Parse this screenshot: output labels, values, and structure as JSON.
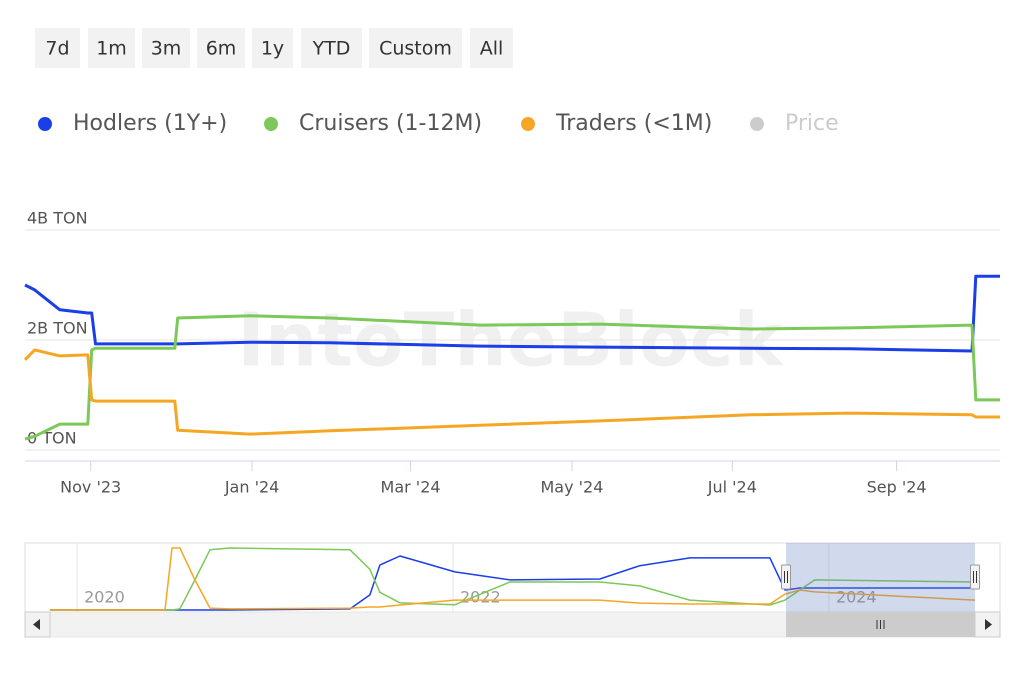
{
  "range_selector": {
    "buttons": [
      "7d",
      "1m",
      "3m",
      "6m",
      "1y",
      "YTD",
      "Custom",
      "All"
    ]
  },
  "watermark": "IntoTheBlock",
  "chart_data": [
    {
      "type": "line",
      "x": [
        2023.765,
        2023.775,
        2023.801,
        2023.83,
        2023.834,
        2023.838,
        2023.92,
        2023.923,
        2023.998,
        2024.081,
        2024.236,
        2024.36,
        2024.516,
        2024.619,
        2024.745,
        2024.749,
        2024.774
      ],
      "xlim": [
        2023.765,
        2024.774
      ],
      "xticks": [
        {
          "value": 2023.833,
          "label": "Nov '23"
        },
        {
          "value": 2024.0,
          "label": "Jan '24"
        },
        {
          "value": 2024.164,
          "label": "Mar '24"
        },
        {
          "value": 2024.331,
          "label": "May '24"
        },
        {
          "value": 2024.497,
          "label": "Jul '24"
        },
        {
          "value": 2024.667,
          "label": "Sep '24"
        }
      ],
      "ylim": [
        0,
        4000000000
      ],
      "yticks": [
        {
          "value": 0,
          "label": "0 TON"
        },
        {
          "value": 2000000000,
          "label": "2B TON"
        },
        {
          "value": 4000000000,
          "label": "4B TON"
        }
      ],
      "grid": true,
      "series": [
        {
          "name": "Hodlers (1Y+)",
          "color": "#1a3ee8",
          "values": [
            3000000000,
            2910000000,
            2550000000,
            2490000000,
            2490000000,
            1930000000,
            1930000000,
            1930000000,
            1960000000,
            1950000000,
            1890000000,
            1870000000,
            1850000000,
            1840000000,
            1800000000,
            3160000000,
            3160000000
          ]
        },
        {
          "name": "Cruisers (1-12M)",
          "color": "#7cc95a",
          "values": [
            200000000,
            250000000,
            470000000,
            470000000,
            1820000000,
            1850000000,
            1850000000,
            2400000000,
            2440000000,
            2400000000,
            2270000000,
            2290000000,
            2200000000,
            2220000000,
            2270000000,
            910000000,
            910000000
          ]
        },
        {
          "name": "Traders (<1M)",
          "color": "#f5a623",
          "values": [
            1640000000,
            1820000000,
            1710000000,
            1730000000,
            910000000,
            890000000,
            890000000,
            360000000,
            290000000,
            350000000,
            450000000,
            530000000,
            640000000,
            670000000,
            640000000,
            600000000,
            600000000
          ]
        },
        {
          "name": "Price",
          "color": "#cccccc",
          "visible": false
        }
      ]
    },
    {
      "type": "line",
      "x": [
        2019.856,
        2020.468,
        2020.505,
        2020.547,
        2020.627,
        2020.707,
        2020.813,
        2021.452,
        2021.558,
        2021.611,
        2021.718,
        2022.01,
        2022.303,
        2022.781,
        2022.994,
        2023.26,
        2023.686,
        2023.766,
        2023.845,
        2023.925,
        2024.777
      ],
      "xlim": [
        2019.856,
        2024.777
      ],
      "xticks": [
        2020,
        2022,
        2024
      ],
      "ylim": [
        0,
        3500000000
      ],
      "series": [
        {
          "name": "Hodlers (1Y+)",
          "color": "#1a3ee8",
          "values": [
            0,
            0,
            0,
            0,
            0,
            0,
            0,
            60000000,
            850000000,
            2540000000,
            3050000000,
            2150000000,
            1700000000,
            1750000000,
            2500000000,
            2940000000,
            2940000000,
            1130000000,
            1240000000,
            1240000000,
            1240000000
          ]
        },
        {
          "name": "Cruisers (1-12M)",
          "color": "#7cc95a",
          "values": [
            0,
            0,
            0,
            60000000,
            1700000000,
            3400000000,
            3500000000,
            3400000000,
            2300000000,
            1000000000,
            400000000,
            300000000,
            1580000000,
            1580000000,
            1360000000,
            560000000,
            280000000,
            560000000,
            1130000000,
            1700000000,
            1580000000
          ]
        },
        {
          "name": "Traders (<1M)",
          "color": "#f5a623",
          "values": [
            0,
            0,
            3500000000,
            3500000000,
            1700000000,
            110000000,
            60000000,
            110000000,
            170000000,
            170000000,
            280000000,
            560000000,
            560000000,
            560000000,
            390000000,
            340000000,
            340000000,
            900000000,
            1130000000,
            1020000000,
            560000000
          ]
        }
      ]
    }
  ]
}
